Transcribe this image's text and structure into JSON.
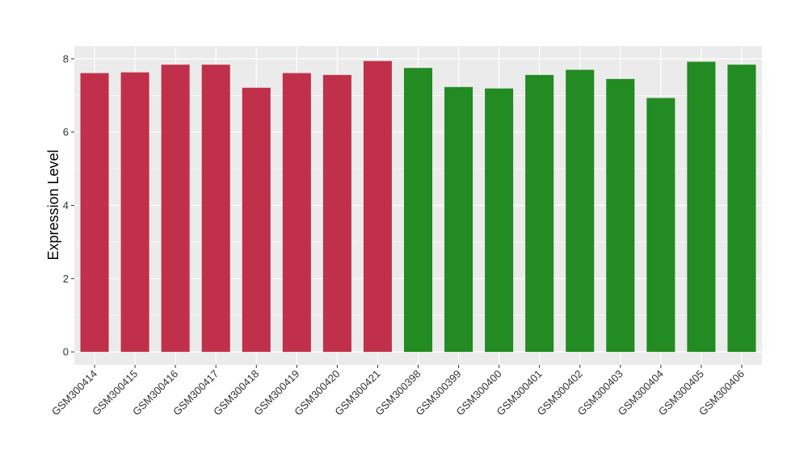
{
  "chart_data": {
    "type": "bar",
    "title": "",
    "xlabel": "",
    "ylabel": "Expression Level",
    "ylim": [
      -0.35,
      8.35
    ],
    "yticks": [
      0,
      2,
      4,
      6,
      8
    ],
    "grid": true,
    "legend": "none",
    "categories": [
      "GSM300414",
      "GSM300415",
      "GSM300416",
      "GSM300417",
      "GSM300418",
      "GSM300419",
      "GSM300420",
      "GSM300421",
      "GSM300398",
      "GSM300399",
      "GSM300400",
      "GSM300401",
      "GSM300402",
      "GSM300403",
      "GSM300404",
      "GSM300405",
      "GSM300406"
    ],
    "values": [
      7.61,
      7.63,
      7.84,
      7.84,
      7.21,
      7.61,
      7.56,
      7.94,
      7.75,
      7.23,
      7.19,
      7.56,
      7.7,
      7.45,
      6.93,
      7.92,
      7.84
    ],
    "bar_colors": [
      "#c0304a",
      "#c0304a",
      "#c0304a",
      "#c0304a",
      "#c0304a",
      "#c0304a",
      "#c0304a",
      "#c0304a",
      "#228b22",
      "#228b22",
      "#228b22",
      "#228b22",
      "#228b22",
      "#228b22",
      "#228b22",
      "#228b22",
      "#228b22"
    ],
    "panel_background": "#ebebeb",
    "grid_color": "#ffffff"
  }
}
